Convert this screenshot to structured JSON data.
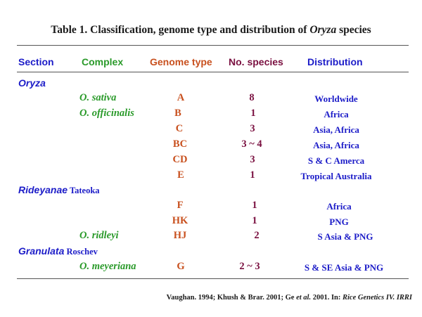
{
  "title": {
    "prefix": "Table 1. Classification, genome type and distribution of ",
    "italic": "Oryza",
    "suffix": " species"
  },
  "headers": {
    "section": "Section",
    "complex": "Complex",
    "genome": "Genome type",
    "species": "No. species",
    "distribution": "Distribution"
  },
  "sections": [
    {
      "name": "Oryza",
      "author": ""
    },
    {
      "name": "Rideyanae",
      "author": " Tateoka"
    },
    {
      "name": "Granulata",
      "author": " Roschev"
    }
  ],
  "rows": [
    {
      "complex": "O. sativa",
      "genome": "A",
      "species": "8",
      "distribution": "Worldwide"
    },
    {
      "complex": "O. officinalis",
      "genome": "B",
      "species": "1",
      "distribution": "Africa"
    },
    {
      "complex": "",
      "genome": "C",
      "species": "3",
      "distribution": "Asia, Africa"
    },
    {
      "complex": "",
      "genome": "BC",
      "species": "3 ~ 4",
      "distribution": "Asia, Africa"
    },
    {
      "complex": "",
      "genome": "CD",
      "species": "3",
      "distribution": "S & C Amerca"
    },
    {
      "complex": "",
      "genome": "E",
      "species": "1",
      "distribution": "Tropical Australia"
    },
    {
      "complex": "",
      "genome": "F",
      "species": "1",
      "distribution": "Africa"
    },
    {
      "complex": "",
      "genome": "HK",
      "species": "1",
      "distribution": "PNG"
    },
    {
      "complex": "O. ridleyi",
      "genome": "HJ",
      "species": "2",
      "distribution": "S Asia & PNG"
    },
    {
      "complex": "O. meyeriana",
      "genome": "G",
      "species": "2 ~ 3",
      "distribution": "S & SE Asia & PNG"
    }
  ],
  "footer": {
    "prefix": "Vaughan. 1994;  Khush & Brar. 2001;  Ge ",
    "etal": "et al.",
    "middle": " 2001. In: ",
    "book": "Rice Genetics IV. IRRI"
  }
}
